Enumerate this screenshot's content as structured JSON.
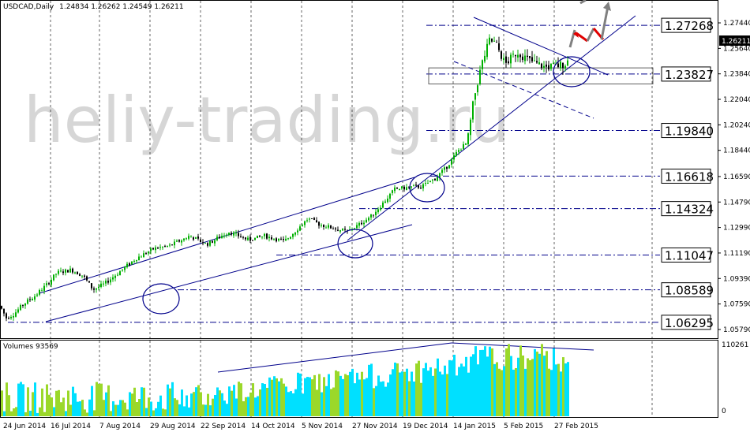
{
  "header": {
    "symbol": "USDCAD,Daily",
    "ohlc": "1.24834 1.26262 1.24549 1.26211"
  },
  "watermark": "heliy-trading.ru",
  "volume_header": "Volumes 93569",
  "colors": {
    "candle_up": "#00b000",
    "candle_down": "#000000",
    "line": "#00008b",
    "vol_up": "#00e0ff",
    "vol_down": "#9bd82a",
    "arrow_gray": "#808080",
    "arrow_red": "#e00000"
  },
  "chart_data": {
    "type": "candlestick",
    "symbol": "USDCAD",
    "timeframe": "Daily",
    "x_tick_labels": [
      "24 Jun 2014",
      "16 Jul 2014",
      "7 Aug 2014",
      "29 Aug 2014",
      "22 Sep 2014",
      "14 Oct 2014",
      "5 Nov 2014",
      "27 Nov 2014",
      "19 Dec 2014",
      "14 Jan 2015",
      "5 Feb 2015",
      "27 Feb 2015"
    ],
    "y_tick_labels": [
      "1.27440",
      "1.25640",
      "1.23840",
      "1.22040",
      "1.20240",
      "1.18440",
      "1.16590",
      "1.14790",
      "1.12990",
      "1.11190",
      "1.09390",
      "1.07590",
      "1.05790"
    ],
    "ylim": [
      1.0523,
      1.2861
    ],
    "current_price": "1.26211",
    "levels": [
      "1.27268",
      "1.23827",
      "1.19840",
      "1.16618",
      "1.14324",
      "1.11047",
      "1.08589",
      "1.06295"
    ],
    "volume": {
      "label": "Volumes",
      "last": 93569,
      "axis_max_label": "110261",
      "axis_min_label": "0"
    }
  }
}
